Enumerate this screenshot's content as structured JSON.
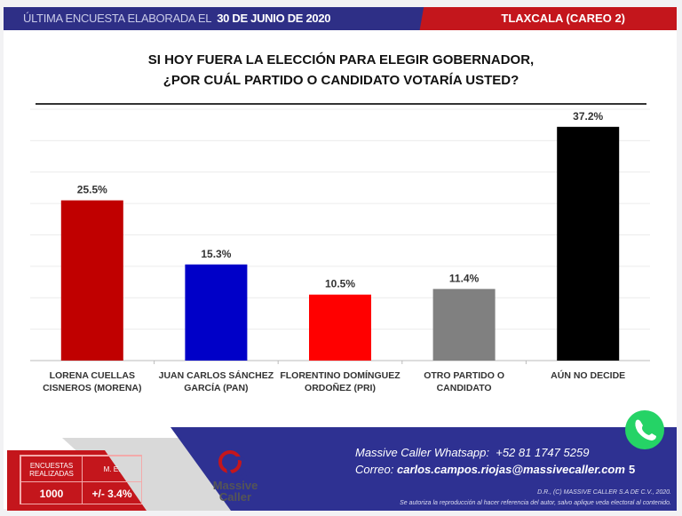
{
  "header": {
    "prefix": "ÚLTIMA ENCUESTA ELABORADA EL",
    "date": "30 DE JUNIO DE 2020",
    "region": "TLAXCALA (CAREO 2)"
  },
  "question": [
    "SI HOY FUERA LA ELECCIÓN PARA ELEGIR GOBERNADOR,",
    "¿POR CUÁL PARTIDO O CANDIDATO VOTARÍA USTED?"
  ],
  "chart_data": {
    "type": "bar",
    "title": "SI HOY FUERA LA ELECCIÓN PARA ELEGIR GOBERNADOR, ¿POR CUÁL PARTIDO O CANDIDATO VOTARÍA USTED?",
    "categories": [
      [
        "LORENA CUELLAS",
        "CISNEROS (MORENA)"
      ],
      [
        "JUAN CARLOS SÁNCHEZ",
        "GARCÍA (PAN)"
      ],
      [
        "FLORENTINO DOMÍNGUEZ",
        "ORDOÑEZ (PRI)"
      ],
      [
        "OTRO PARTIDO O",
        "CANDIDATO"
      ],
      [
        "AÚN NO DECIDE"
      ]
    ],
    "values": [
      25.5,
      15.3,
      10.5,
      11.4,
      37.2
    ],
    "labels": [
      "25.5%",
      "15.3%",
      "10.5%",
      "11.4%",
      "37.2%"
    ],
    "colors": [
      "#c00000",
      "#0000c8",
      "#ff0000",
      "#808080",
      "#000000"
    ],
    "ylim": [
      0,
      40
    ],
    "grid": true,
    "legend": "none"
  },
  "footer": {
    "table": {
      "h1": "ENCUESTAS REALIZADAS",
      "h2": "M. E.",
      "v1": "1000",
      "v2": "+/- 3.4%"
    },
    "logo": "Massive Caller",
    "whatsapp_label": "Massive Caller Whatsapp:",
    "whatsapp": "+52 81 1747 5259",
    "email_label": "Correo:",
    "email": "carlos.campos.riojas@massivecaller.com",
    "page": "5",
    "copyright": "D.R., (C) MASSIVE CALLER S.A DE C.V., 2020.",
    "disclaimer": "Se autoriza la reproducción al hacer referencia del autor, salvo aplique veda electoral al contenido."
  }
}
